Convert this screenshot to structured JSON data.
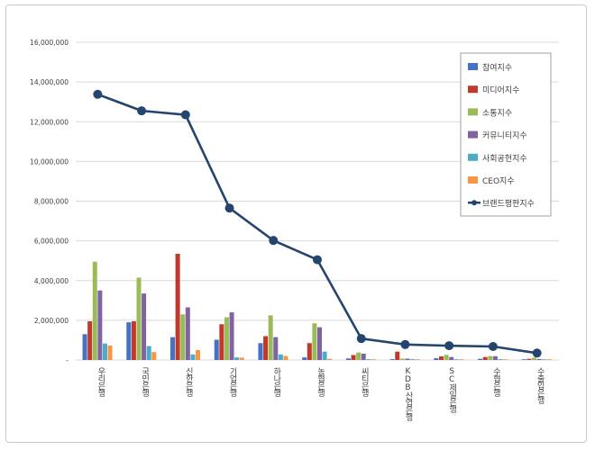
{
  "chart_data": {
    "type": "bar",
    "title": "",
    "xlabel": "",
    "ylabel": "",
    "ylim": [
      0,
      16000000
    ],
    "yticks": [
      0,
      2000000,
      4000000,
      6000000,
      8000000,
      10000000,
      12000000,
      14000000,
      16000000
    ],
    "ytick_labels": [
      "-",
      "2,000,000",
      "4,000,000",
      "6,000,000",
      "8,000,000",
      "10,000,000",
      "12,000,000",
      "14,000,000",
      "16,000,000"
    ],
    "grid": true,
    "legend_position": "top-right",
    "categories": [
      "우리은행",
      "국민은행",
      "신한은행",
      "기업은행",
      "하나은행",
      "농협은행",
      "씨티은행",
      "KDB산업은행",
      "SC제일은행",
      "수협은행",
      "수출입은행"
    ],
    "series": [
      {
        "name": "참여지수",
        "type": "bar",
        "color": "#4472c4",
        "values": [
          1300000,
          1900000,
          1150000,
          1020000,
          850000,
          130000,
          80000,
          40000,
          90000,
          60000,
          30000
        ]
      },
      {
        "name": "미디어지수",
        "type": "bar",
        "color": "#c0392b",
        "values": [
          1950000,
          1950000,
          5350000,
          1800000,
          1200000,
          850000,
          250000,
          420000,
          180000,
          150000,
          60000
        ]
      },
      {
        "name": "소통지수",
        "type": "bar",
        "color": "#9bbb59",
        "values": [
          4950000,
          4150000,
          2300000,
          2150000,
          2250000,
          1850000,
          380000,
          70000,
          260000,
          200000,
          120000
        ]
      },
      {
        "name": "커뮤니티지수",
        "type": "bar",
        "color": "#8064a2",
        "values": [
          3500000,
          3350000,
          2650000,
          2400000,
          1150000,
          1650000,
          320000,
          70000,
          150000,
          190000,
          50000
        ]
      },
      {
        "name": "사회공헌지수",
        "type": "bar",
        "color": "#4bacc6",
        "values": [
          830000,
          700000,
          280000,
          130000,
          280000,
          420000,
          40000,
          40000,
          30000,
          40000,
          20000
        ]
      },
      {
        "name": "CEO지수",
        "type": "bar",
        "color": "#f79646",
        "values": [
          730000,
          400000,
          500000,
          120000,
          200000,
          60000,
          20000,
          30000,
          20000,
          20000,
          20000
        ]
      },
      {
        "name": "브랜드평판지수",
        "type": "line",
        "color": "#24466e",
        "values": [
          13380000,
          12550000,
          12350000,
          7650000,
          6020000,
          5050000,
          1080000,
          780000,
          720000,
          680000,
          350000
        ]
      }
    ]
  }
}
